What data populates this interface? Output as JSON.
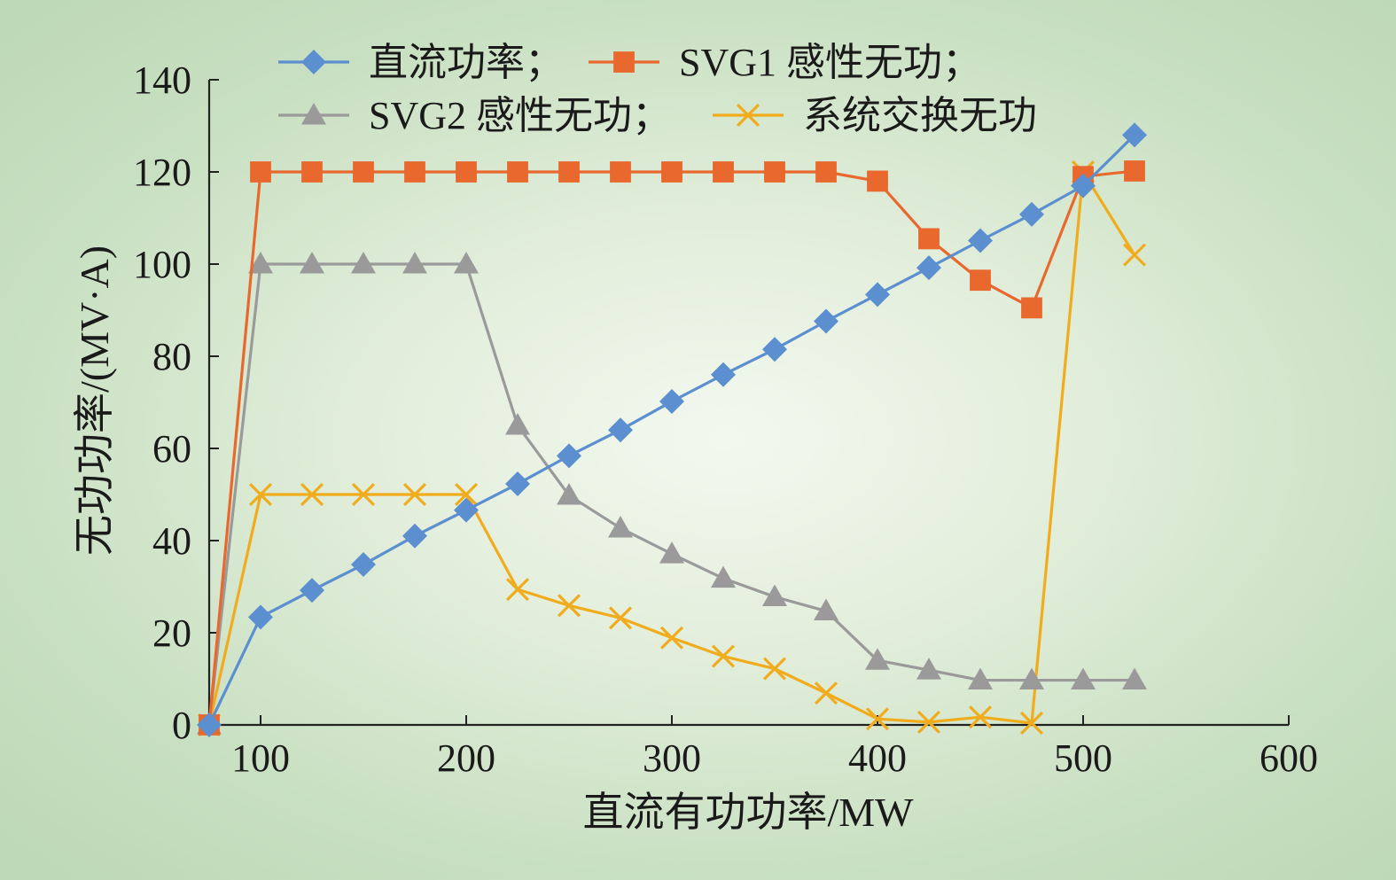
{
  "chart_data": {
    "type": "line",
    "title": "",
    "xlabel": "直流有功功率/MW",
    "ylabel": "无功功率/(MV·A)",
    "xlim": [
      75,
      600
    ],
    "ylim": [
      0,
      140
    ],
    "xticks": [
      100,
      200,
      300,
      400,
      500,
      600
    ],
    "yticks": [
      0,
      20,
      40,
      60,
      80,
      100,
      120,
      140
    ],
    "grid": false,
    "legend_position": "top",
    "x": [
      75,
      100,
      125,
      150,
      175,
      200,
      225,
      250,
      275,
      300,
      325,
      350,
      375,
      400,
      425,
      450,
      475,
      500,
      525
    ],
    "series": [
      {
        "name": "直流功率；",
        "color": "#5b8fd0",
        "marker": "diamond",
        "values": [
          0,
          23.4,
          29.2,
          34.8,
          41.0,
          46.6,
          52.3,
          58.4,
          64.0,
          70.2,
          76.0,
          81.5,
          87.6,
          93.4,
          99.2,
          105.1,
          110.8,
          117.0,
          128.0
        ]
      },
      {
        "name": "SVG1 感性无功；",
        "color": "#e8682e",
        "marker": "square",
        "values": [
          0,
          120,
          120,
          120,
          120,
          120,
          120,
          120,
          120,
          120,
          120,
          120,
          120,
          118,
          105.5,
          96.5,
          90.5,
          119,
          120.2
        ]
      },
      {
        "name": "SVG2 感性无功；",
        "color": "#9a9a9a",
        "marker": "triangle",
        "values": [
          0,
          100,
          100,
          100,
          100,
          100,
          65,
          49.8,
          42.7,
          37.1,
          31.8,
          27.8,
          24.7,
          14.0,
          11.9,
          9.7,
          9.7,
          9.7,
          9.7
        ]
      },
      {
        "name": "系统交换无功",
        "color": "#f0ac1c",
        "marker": "x",
        "values": [
          0,
          50,
          50,
          50,
          50,
          50,
          29.4,
          25.9,
          23.2,
          18.9,
          14.9,
          12.2,
          6.9,
          1.3,
          0.6,
          1.7,
          0.4,
          120,
          102
        ]
      }
    ]
  }
}
